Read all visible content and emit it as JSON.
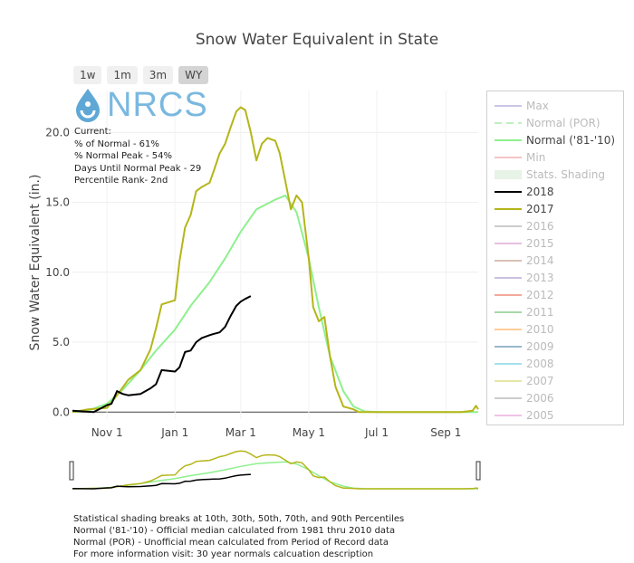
{
  "title": "Snow Water Equivalent in State",
  "range_buttons": [
    "1w",
    "1m",
    "3m",
    "WY"
  ],
  "active_range": "WY",
  "logo_text": "NRCS",
  "stats": {
    "heading": "Current:",
    "pct_normal": "% of Normal - 61%",
    "pct_normal_peak": "% Normal Peak - 54%",
    "days_until_peak": "Days Until Normal Peak - 29",
    "percentile_rank": "Percentile Rank- 2nd"
  },
  "legend": [
    {
      "label": "Max",
      "color": "#c9c6e6",
      "active": false,
      "dash": false
    },
    {
      "label": "Normal (POR)",
      "color": "#bfeebf",
      "active": false,
      "dash": true
    },
    {
      "label": "Normal ('81-'10)",
      "color": "#8ef08e",
      "active": true,
      "dash": false
    },
    {
      "label": "Min",
      "color": "#f4c4c8",
      "active": false,
      "dash": false
    },
    {
      "label": "Stats. Shading",
      "color": "#e6f3e6",
      "active": false,
      "dash": false
    },
    {
      "label": "2018",
      "color": "#000000",
      "active": true,
      "dash": false
    },
    {
      "label": "2017",
      "color": "#b5b519",
      "active": true,
      "dash": false
    },
    {
      "label": "2016",
      "color": "#cccccc",
      "active": false,
      "dash": false
    },
    {
      "label": "2015",
      "color": "#e8bfe0",
      "active": false,
      "dash": false
    },
    {
      "label": "2014",
      "color": "#d8bfb4",
      "active": false,
      "dash": false
    },
    {
      "label": "2013",
      "color": "#cbbfe0",
      "active": false,
      "dash": false
    },
    {
      "label": "2012",
      "color": "#f2a99a",
      "active": false,
      "dash": false
    },
    {
      "label": "2011",
      "color": "#a6d9a6",
      "active": false,
      "dash": false
    },
    {
      "label": "2010",
      "color": "#ffcc99",
      "active": false,
      "dash": false
    },
    {
      "label": "2009",
      "color": "#99b8cc",
      "active": false,
      "dash": false
    },
    {
      "label": "2008",
      "color": "#a6e0ee",
      "active": false,
      "dash": false
    },
    {
      "label": "2007",
      "color": "#e6e6a6",
      "active": false,
      "dash": false
    },
    {
      "label": "2006",
      "color": "#cccccc",
      "active": false,
      "dash": false
    },
    {
      "label": "2005",
      "color": "#eec3e6",
      "active": false,
      "dash": false
    }
  ],
  "footnotes": [
    "Statistical shading breaks at 10th, 30th, 50th, 70th, and 90th Percentiles",
    "Normal ('81-'10) - Official median calculated from 1981 thru 2010 data",
    "Normal (POR) - Unofficial mean calculated from Period of Record data",
    "For more information visit: 30 year normals calcuation description"
  ],
  "chart_data": {
    "type": "line",
    "title": "Snow Water Equivalent in State",
    "xlabel": "",
    "ylabel": "Snow Water Equivalent (in.)",
    "xlim": [
      "Oct 1",
      "Sep 30"
    ],
    "ylim": [
      -0.5,
      23
    ],
    "y_ticks": [
      0,
      5,
      10,
      15,
      20
    ],
    "y_tick_labels": [
      "0.0",
      "5.0",
      "10.0",
      "15.0",
      "20.0"
    ],
    "x_ticks": [
      "Nov 1",
      "Jan 1",
      "Mar 1",
      "May 1",
      "Jul 1",
      "Sep 1"
    ],
    "grid": true,
    "series": [
      {
        "name": "Normal ('81-'10)",
        "color": "#8ef08e",
        "x": [
          "Oct 1",
          "Oct 15",
          "Nov 1",
          "Nov 15",
          "Dec 1",
          "Dec 15",
          "Jan 1",
          "Jan 15",
          "Feb 1",
          "Feb 15",
          "Mar 1",
          "Mar 15",
          "Apr 1",
          "Apr 10",
          "Apr 20",
          "May 1",
          "May 10",
          "May 20",
          "Jun 1",
          "Jun 10",
          "Jun 20",
          "Jul 1",
          "Jul 15",
          "Aug 1",
          "Sep 1",
          "Sep 30"
        ],
        "y": [
          0.0,
          0.1,
          0.6,
          1.6,
          3.0,
          4.4,
          5.9,
          7.6,
          9.3,
          11.0,
          12.9,
          14.5,
          15.2,
          15.5,
          14.3,
          11.0,
          7.5,
          4.0,
          1.5,
          0.4,
          0.05,
          0.0,
          0.0,
          0.0,
          0.0,
          0.0
        ]
      },
      {
        "name": "2018",
        "color": "#000000",
        "x": [
          "Oct 1",
          "Oct 10",
          "Oct 20",
          "Nov 1",
          "Nov 5",
          "Nov 10",
          "Nov 15",
          "Nov 20",
          "Dec 1",
          "Dec 10",
          "Dec 15",
          "Dec 20",
          "Jan 1",
          "Jan 5",
          "Jan 10",
          "Jan 15",
          "Jan 20",
          "Jan 25",
          "Feb 1",
          "Feb 5",
          "Feb 10",
          "Feb 15",
          "Feb 20",
          "Feb 25",
          "Mar 1",
          "Mar 5",
          "Mar 10"
        ],
        "y": [
          0.1,
          0.05,
          0.0,
          0.5,
          0.6,
          1.5,
          1.3,
          1.2,
          1.3,
          1.7,
          2.0,
          3.0,
          2.9,
          3.2,
          4.3,
          4.4,
          5.0,
          5.3,
          5.5,
          5.6,
          5.7,
          6.1,
          6.9,
          7.6,
          7.9,
          8.1,
          8.3
        ]
      },
      {
        "name": "2017",
        "color": "#b5b519",
        "x": [
          "Oct 1",
          "Oct 15",
          "Nov 1",
          "Nov 10",
          "Nov 20",
          "Dec 1",
          "Dec 10",
          "Dec 15",
          "Dec 20",
          "Jan 1",
          "Jan 5",
          "Jan 10",
          "Jan 15",
          "Jan 20",
          "Jan 25",
          "Feb 1",
          "Feb 5",
          "Feb 10",
          "Feb 15",
          "Feb 20",
          "Feb 25",
          "Mar 1",
          "Mar 5",
          "Mar 10",
          "Mar 15",
          "Mar 20",
          "Mar 25",
          "Apr 1",
          "Apr 5",
          "Apr 10",
          "Apr 15",
          "Apr 20",
          "Apr 25",
          "May 1",
          "May 5",
          "May 10",
          "May 15",
          "May 20",
          "May 25",
          "Jun 1",
          "Jun 10",
          "Jun 15",
          "Jun 20",
          "Jun 25",
          "Jul 1",
          "Jul 10",
          "Aug 1",
          "Aug 15",
          "Sep 1",
          "Sep 15",
          "Sep 25",
          "Sep 28",
          "Sep 30"
        ],
        "y": [
          0.0,
          0.2,
          0.3,
          1.2,
          2.3,
          3.0,
          4.5,
          6.0,
          7.7,
          8.0,
          10.8,
          13.2,
          14.1,
          15.8,
          16.1,
          16.4,
          17.3,
          18.5,
          19.2,
          20.4,
          21.5,
          21.8,
          21.6,
          20.0,
          18.0,
          19.2,
          19.6,
          19.4,
          18.5,
          16.5,
          14.5,
          15.5,
          15.0,
          11.0,
          7.5,
          6.5,
          6.8,
          4.0,
          1.8,
          0.4,
          0.2,
          0.0,
          0.0,
          0.0,
          0.0,
          0.0,
          0.0,
          0.0,
          0.0,
          0.0,
          0.1,
          0.45,
          0.2
        ]
      }
    ]
  }
}
